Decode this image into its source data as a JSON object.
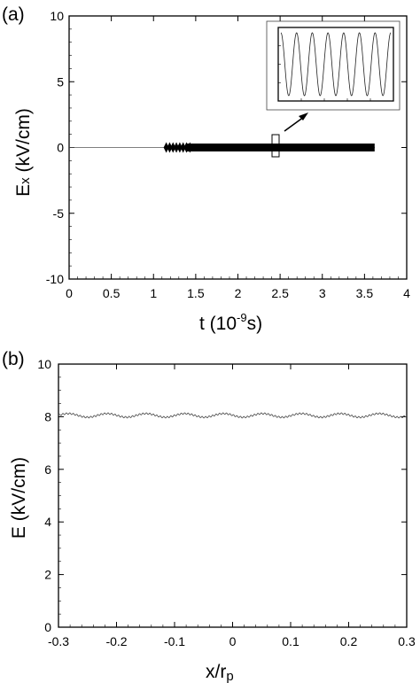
{
  "chart_data": [
    {
      "panel_label": "(a)",
      "type": "line",
      "xlabel": "t (10",
      "xlabel_exp": "-9",
      "xlabel_unit": "s)",
      "ylabel_main": "E",
      "ylabel_sub": "x",
      "ylabel_rest": " (kV/cm)",
      "xlim": [
        0,
        4
      ],
      "ylim": [
        -10,
        10
      ],
      "xticks": [
        "0",
        "0.5",
        "1",
        "1.5",
        "2",
        "2.5",
        "3",
        "3.5",
        "4"
      ],
      "yticks": [
        "10",
        "5",
        "0",
        "-5",
        "-10"
      ],
      "series": [
        {
          "description": "E_x(t): zero until ~1.13 ns, then oscillation of amplitude ~0.3 kV/cm until ~3.62 ns",
          "x": [
            0,
            1.13,
            1.13,
            3.62
          ],
          "y": [
            0,
            0,
            0.3,
            0.3
          ]
        }
      ],
      "inset": {
        "type": "line",
        "waveform": "sine",
        "cycles": 7
      }
    },
    {
      "panel_label": "(b)",
      "type": "line",
      "xlabel_main": "x/r",
      "xlabel_sub": "p",
      "ylabel": "E (kV/cm)",
      "xlim": [
        -0.3,
        0.3
      ],
      "ylim": [
        0,
        10
      ],
      "xticks": [
        "-0.3",
        "-0.2",
        "-0.1",
        "0",
        "0.1",
        "0.2",
        "0.3"
      ],
      "yticks": [
        "10",
        "8",
        "6",
        "4",
        "2",
        "0"
      ],
      "series": [
        {
          "description": "nearly uniform field ~8.05 kV/cm with small ripple of amplitude ~0.07",
          "mean": 8.05,
          "amplitude": 0.07,
          "period": 0.067
        }
      ]
    }
  ]
}
